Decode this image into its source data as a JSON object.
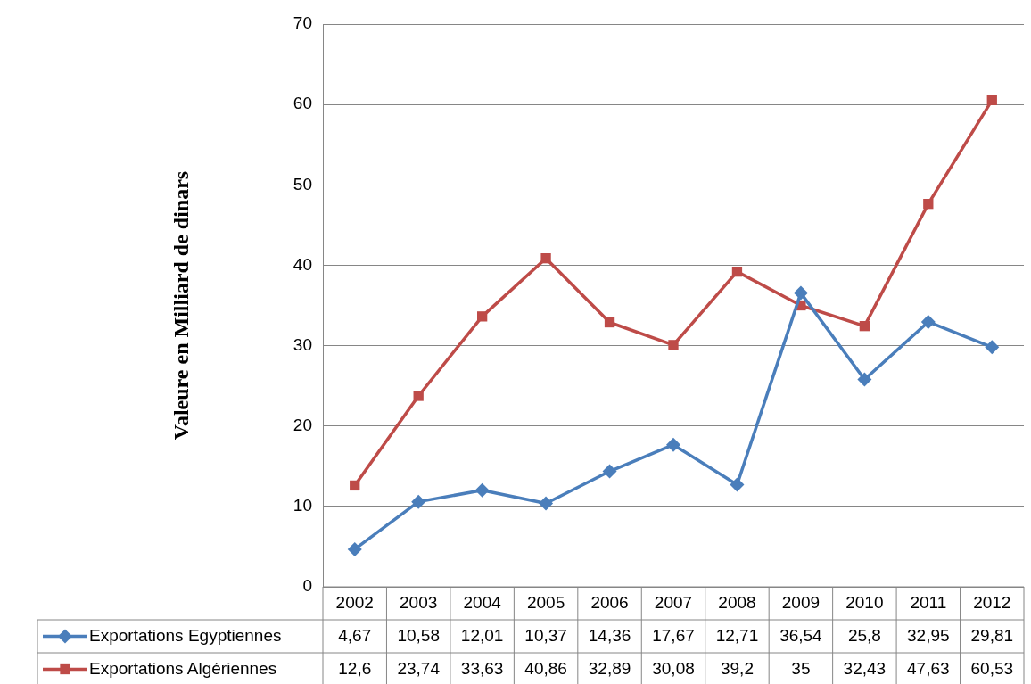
{
  "chart_data": {
    "type": "line",
    "ylabel": "Valeure en Milliard de dinars",
    "categories": [
      "2002",
      "2003",
      "2004",
      "2005",
      "2006",
      "2007",
      "2008",
      "2009",
      "2010",
      "2011",
      "2012"
    ],
    "series": [
      {
        "name": "Exportations Egyptiennes",
        "color": "#4a7ebb",
        "marker": "diamond",
        "values": [
          4.67,
          10.58,
          12.01,
          10.37,
          14.36,
          17.67,
          12.71,
          36.54,
          25.8,
          32.95,
          29.81
        ],
        "value_labels": [
          "4,67",
          "10,58",
          "12,01",
          "10,37",
          "14,36",
          "17,67",
          "12,71",
          "36,54",
          "25,8",
          "32,95",
          "29,81"
        ]
      },
      {
        "name": "Exportations Algériennes",
        "color": "#be4b48",
        "marker": "square",
        "values": [
          12.6,
          23.74,
          33.63,
          40.86,
          32.89,
          30.08,
          39.2,
          35,
          32.43,
          47.63,
          60.53
        ],
        "value_labels": [
          "12,6",
          "23,74",
          "33,63",
          "40,86",
          "32,89",
          "30,08",
          "39,2",
          "35",
          "32,43",
          "47,63",
          "60,53"
        ]
      }
    ],
    "ylim": [
      0,
      70
    ],
    "yticks": [
      0,
      10,
      20,
      30,
      40,
      50,
      60,
      70
    ],
    "grid": "y",
    "legend": "bottom",
    "line_style": "solid"
  }
}
